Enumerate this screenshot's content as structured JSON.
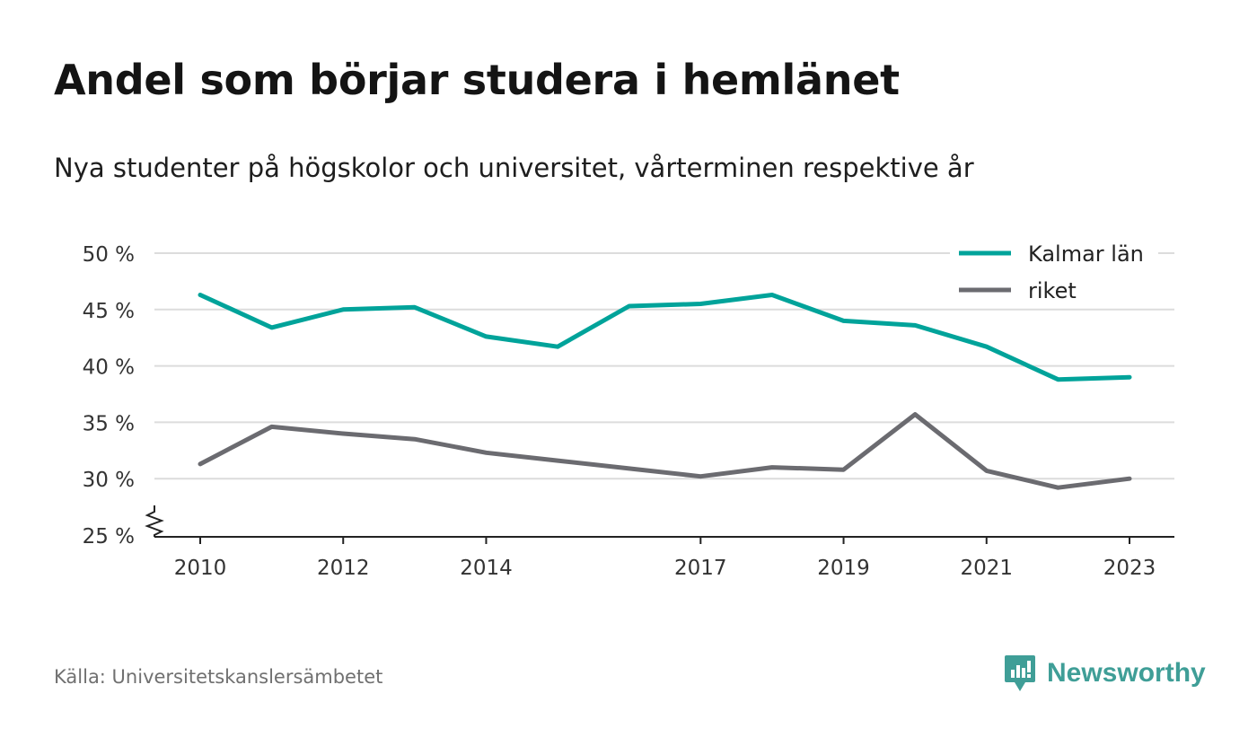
{
  "title": "Andel som börjar studera i hemlänet",
  "subtitle": "Nya studenter på högskolor och universitet, vårterminen respektive år",
  "source": "Källa: Universitetskanslersämbetet",
  "brand": {
    "name": "Newsworthy",
    "icon": "newsworthy-logo-icon",
    "color": "#3f9e97"
  },
  "chart_data": {
    "type": "line",
    "x": [
      2010,
      2011,
      2012,
      2013,
      2014,
      2015,
      2016,
      2017,
      2018,
      2019,
      2020,
      2021,
      2022,
      2023
    ],
    "x_tick_labels": [
      "2010",
      "2012",
      "2014",
      "2017",
      "2019",
      "2021",
      "2023"
    ],
    "y_tick_labels": [
      "25 %",
      "30 %",
      "35 %",
      "40 %",
      "45 %",
      "50 %"
    ],
    "y_ticks": [
      25,
      30,
      35,
      40,
      45,
      50
    ],
    "ylim": [
      25,
      50
    ],
    "y_axis_break": true,
    "grid": true,
    "legend_position": "top-right",
    "series": [
      {
        "name": "Kalmar län",
        "color": "#00a39a",
        "values": [
          46.3,
          43.4,
          45.0,
          45.2,
          42.6,
          41.7,
          45.3,
          45.5,
          46.3,
          44.0,
          43.6,
          41.7,
          38.8,
          39.0
        ]
      },
      {
        "name": "riket",
        "color": "#6b6b70",
        "values": [
          31.3,
          34.6,
          34.0,
          33.5,
          32.3,
          31.6,
          30.9,
          30.2,
          31.0,
          30.8,
          35.7,
          30.7,
          29.2,
          30.0
        ]
      }
    ]
  }
}
